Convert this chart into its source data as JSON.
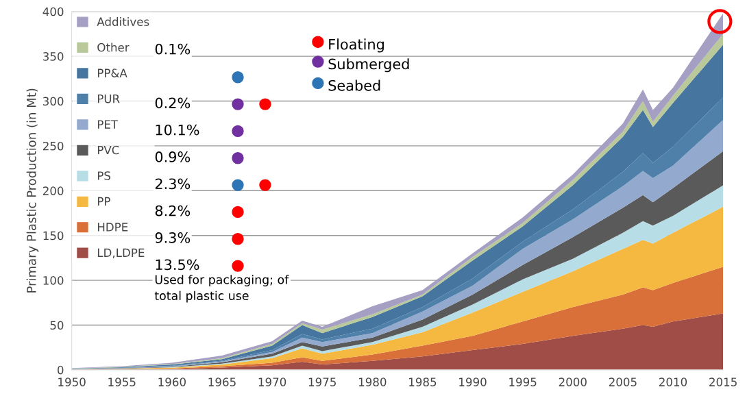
{
  "chart_data": {
    "type": "area",
    "stacked": true,
    "ylabel": "Primary Plastic Production (in Mt)",
    "x": [
      1950,
      1955,
      1960,
      1965,
      1970,
      1973,
      1975,
      1980,
      1985,
      1990,
      1995,
      2000,
      2005,
      2007,
      2008,
      2010,
      2015
    ],
    "series": [
      {
        "name": "LD,LDPE",
        "color": "#a04c47",
        "values": [
          0.3,
          0.5,
          1,
          2.5,
          5,
          9,
          6,
          10,
          15,
          22,
          29,
          38,
          46,
          50,
          48,
          54,
          63
        ]
      },
      {
        "name": "HDPE",
        "color": "#d9703a",
        "values": [
          0.2,
          0.3,
          0.5,
          1.5,
          3,
          5,
          4,
          7,
          12,
          16,
          25,
          32,
          38,
          42,
          41,
          43,
          52
        ]
      },
      {
        "name": "PP",
        "color": "#f5b942",
        "values": [
          0.2,
          0.4,
          1,
          2,
          5,
          10,
          8,
          11,
          15,
          26,
          33,
          40,
          51,
          53,
          52,
          56,
          67
        ]
      },
      {
        "name": "PS",
        "color": "#b7dde6",
        "values": [
          0.1,
          0.3,
          0.5,
          1,
          2,
          3,
          3,
          3,
          6,
          9,
          14,
          14,
          18,
          21,
          20,
          19,
          24
        ]
      },
      {
        "name": "PVC",
        "color": "#5a5a5a",
        "values": [
          0.1,
          0.3,
          0.5,
          1.5,
          3,
          4,
          5,
          5,
          8,
          11,
          16,
          24,
          28,
          29,
          26,
          31,
          38
        ]
      },
      {
        "name": "PET",
        "color": "#93a9cd",
        "values": [
          0.1,
          0.2,
          0.5,
          1,
          2,
          5,
          5,
          5,
          9,
          10,
          18,
          20,
          24,
          27,
          27,
          25,
          35
        ]
      },
      {
        "name": "PUR",
        "color": "#4f80aa",
        "values": [
          0.2,
          0.3,
          0.6,
          0.8,
          2,
          4,
          3,
          5,
          5,
          8,
          8,
          11,
          16,
          20,
          17,
          21,
          25
        ]
      },
      {
        "name": "PP&A",
        "color": "#46769f",
        "values": [
          0.3,
          0.7,
          1.4,
          1.7,
          5,
          10,
          7,
          13,
          12,
          20,
          17,
          27,
          39,
          48,
          40,
          49,
          59
        ]
      },
      {
        "name": "Other",
        "color": "#b9c99a",
        "values": [
          0.2,
          0.3,
          0.5,
          1,
          2,
          2,
          4,
          3,
          2,
          4,
          4,
          6,
          6,
          10,
          6,
          8,
          12
        ]
      },
      {
        "name": "Additives",
        "color": "#a59fc4",
        "values": [
          0.3,
          0.7,
          1.5,
          3,
          3,
          3,
          3,
          9,
          5,
          4,
          6,
          6,
          9,
          13,
          13,
          9,
          23
        ]
      }
    ],
    "xlim": [
      1950,
      2015
    ],
    "xticks": [
      1950,
      1955,
      1960,
      1965,
      1970,
      1975,
      1980,
      1985,
      1990,
      1995,
      2000,
      2005,
      2010,
      2015
    ],
    "ylim": [
      0,
      400
    ],
    "yticks": [
      0,
      50,
      100,
      150,
      200,
      250,
      300,
      350,
      400
    ],
    "grid": "y",
    "legend": "top left",
    "annotations": [
      "0.1%",
      "0.2%",
      "10.1%",
      "0.9%",
      "2.3%",
      "8.2%",
      "9.3%",
      "13.5%",
      "Used for packaging; of\ntotal plastic use",
      "Floating",
      "Submerged",
      "Seabed"
    ]
  }
}
